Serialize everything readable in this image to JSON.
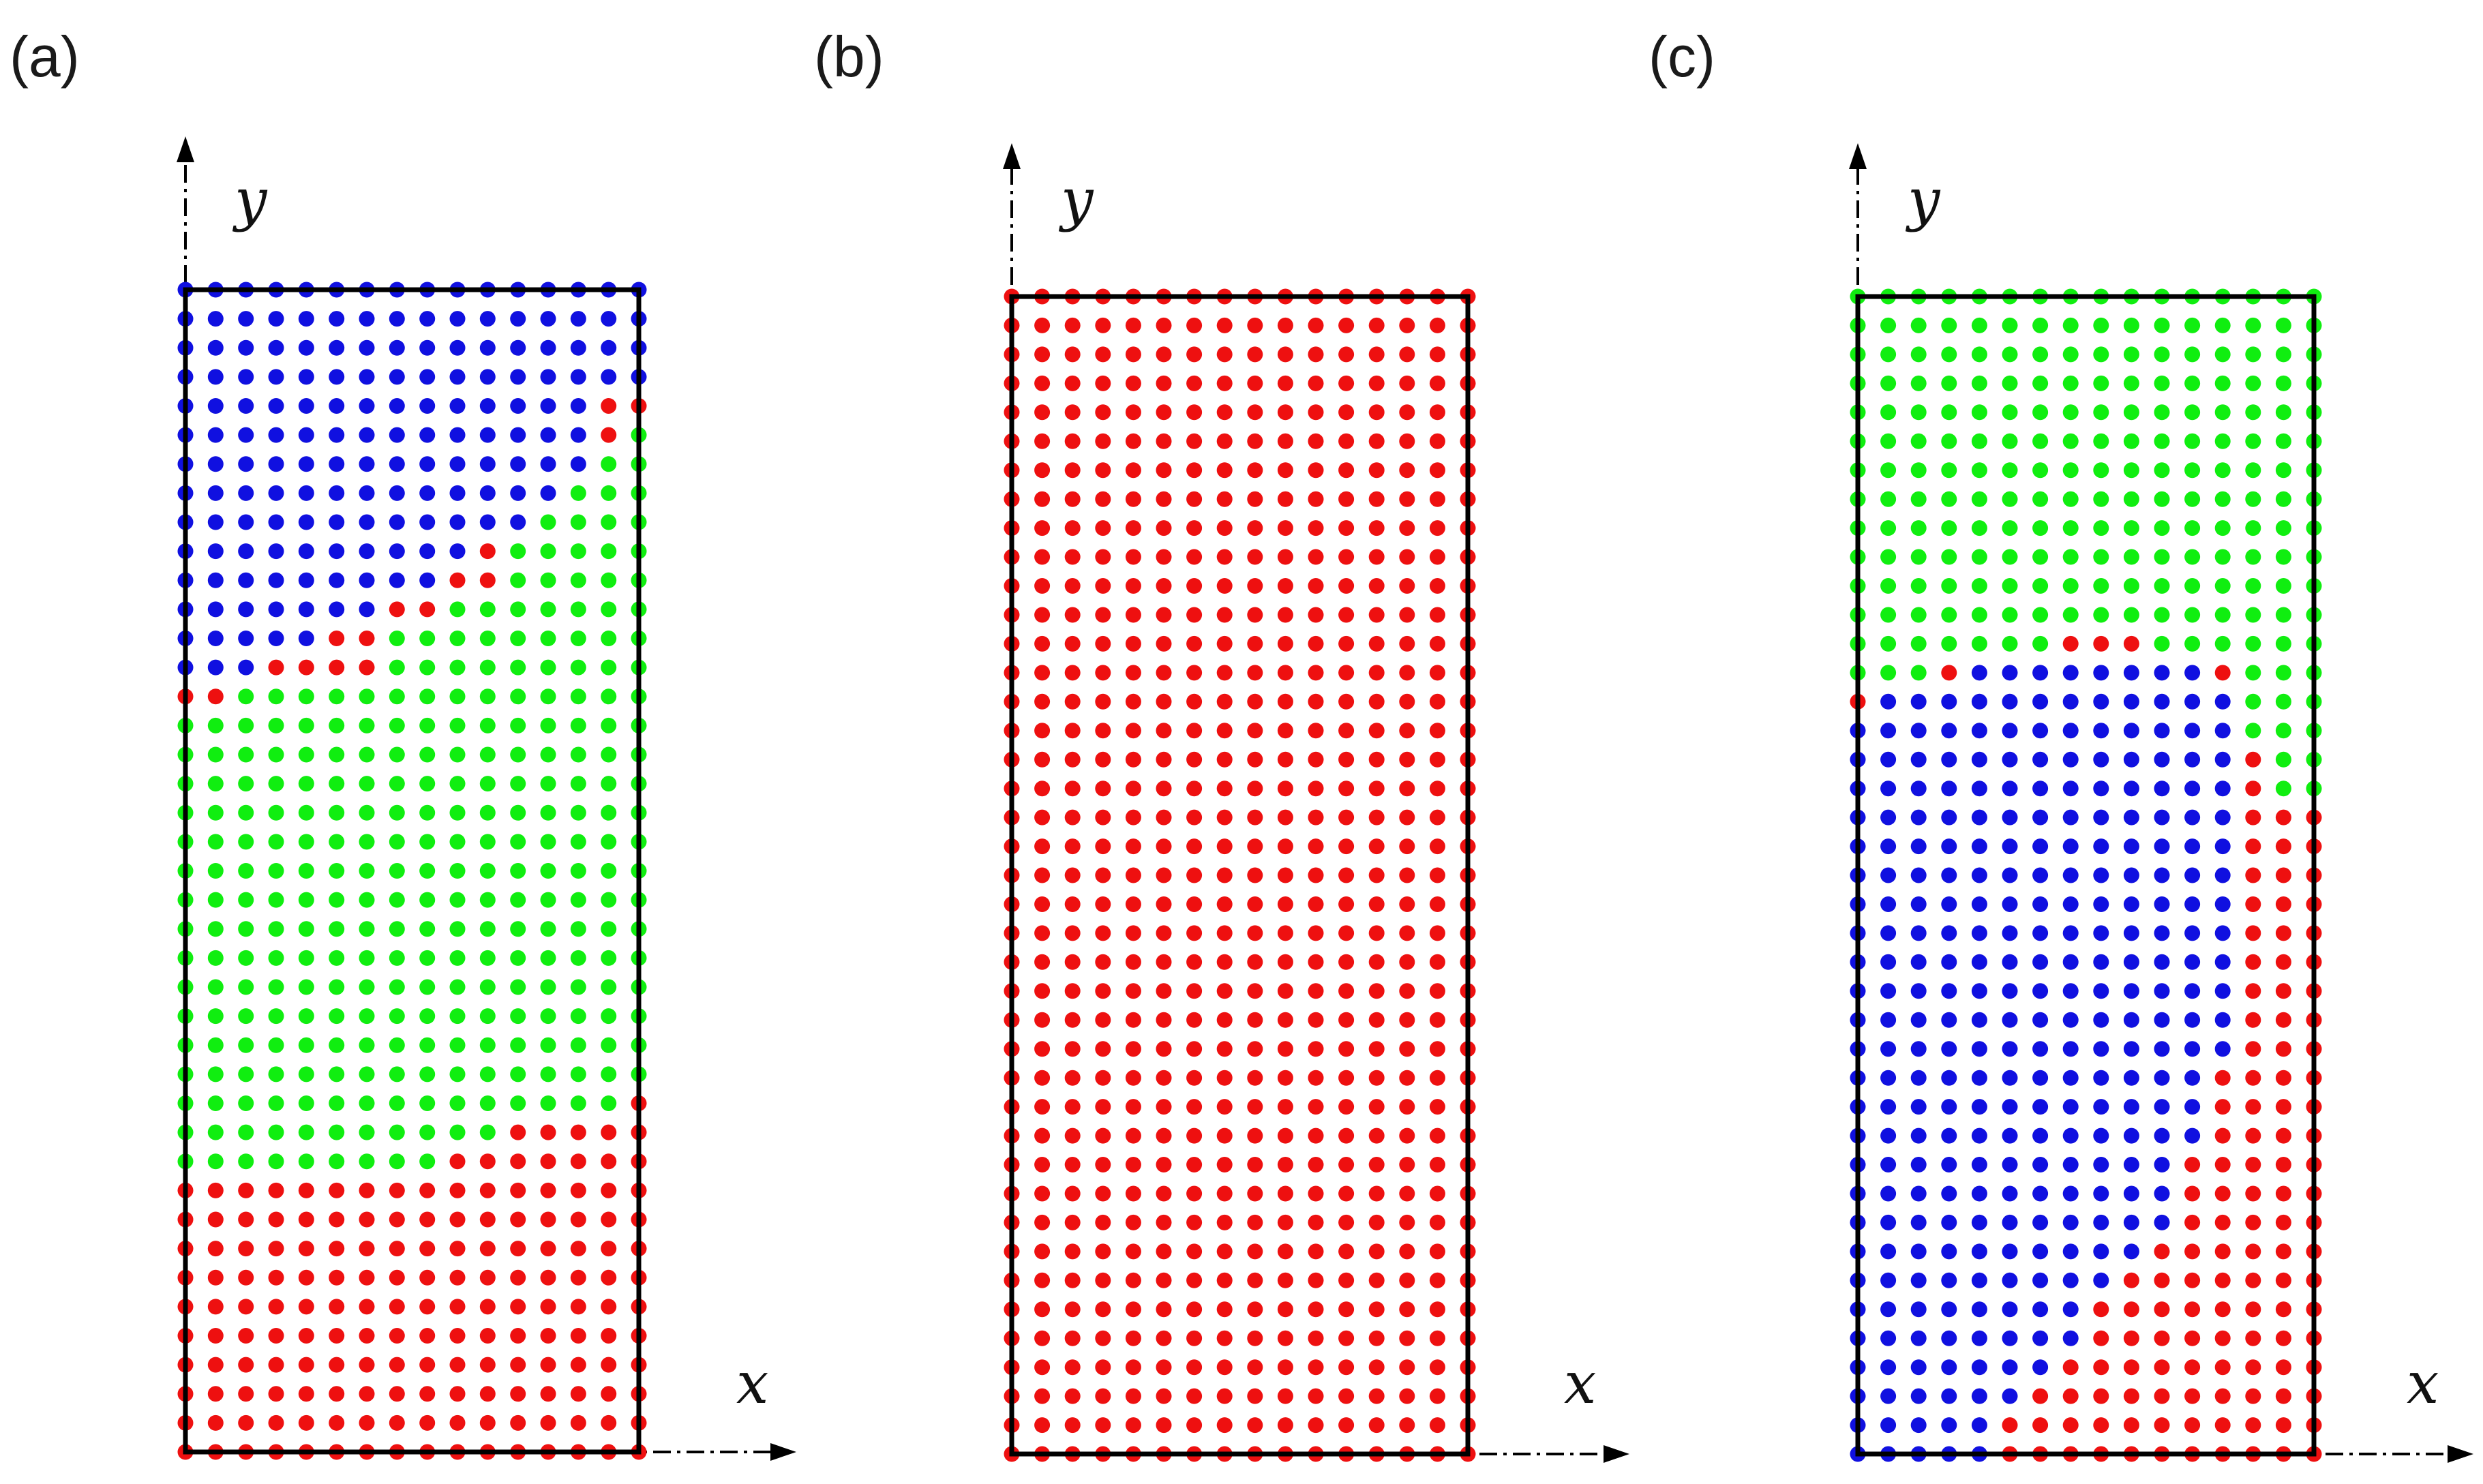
{
  "panels": [
    {
      "label": "(a)",
      "x_label": "x",
      "y_label": "y",
      "grid": {
        "columns": 16,
        "rows": 41
      },
      "colors": {
        "B": "#1010e0",
        "G": "#10ee10",
        "R": "#ee1010"
      },
      "row_codes": [
        "BBBBBBBBBBBBBBBB",
        "BBBBBBBBBBBBBBBB",
        "BBBBBBBBBBBBBBBB",
        "BBBBBBBBBBBBBBBB",
        "BBBBBBBBBBBBBBRR",
        "BBBBBBBBBBBBBBRG",
        "BBBBBBBBBBBBBBGG",
        "BBBBBBBBBBBBBGGG",
        "BBBBBBBBBBBBGGGG",
        "BBBBBBBBBBRGGGGG",
        "BBBBBBBBBRRGGGGG",
        "BBBBBBBRRGGGGGGG",
        "BBBBBRRGGGGGGGGG",
        "BBBRRRRGGGGGGGGG",
        "RRGGGGGGGGGGGGGG",
        "GGGGGGGGGGGGGGGG",
        "GGGGGGGGGGGGGGGG",
        "GGGGGGGGGGGGGGGG",
        "GGGGGGGGGGGGGGGG",
        "GGGGGGGGGGGGGGGG",
        "GGGGGGGGGGGGGGGG",
        "GGGGGGGGGGGGGGGG",
        "GGGGGGGGGGGGGGGG",
        "GGGGGGGGGGGGGGGG",
        "GGGGGGGGGGGGGGGG",
        "GGGGGGGGGGGGGGGG",
        "GGGGGGGGGGGGGGGG",
        "GGGGGGGGGGGGGGGG",
        "GGGGGGGGGGGGGGGR",
        "GGGGGGGGGGGRRRRR",
        "GGGGGGGGGRRRRRRR",
        "RRRRRRRRRRRRRRRR",
        "RRRRRRRRRRRRRRRR",
        "RRRRRRRRRRRRRRRR",
        "RRRRRRRRRRRRRRRR",
        "RRRRRRRRRRRRRRRR",
        "RRRRRRRRRRRRRRRR",
        "RRRRRRRRRRRRRRRR",
        "RRRRRRRRRRRRRRRR",
        "RRRRRRRRRRRRRRRR",
        "RRRRRRRRRRRRRRRR"
      ]
    },
    {
      "label": "(b)",
      "x_label": "x",
      "y_label": "y",
      "grid": {
        "columns": 16,
        "rows": 41
      },
      "colors": {
        "B": "#1010e0",
        "G": "#10ee10",
        "R": "#ee1010"
      },
      "row_codes": [
        "RRRRRRRRRRRRRRRR",
        "RRRRRRRRRRRRRRRR",
        "RRRRRRRRRRRRRRRR",
        "RRRRRRRRRRRRRRRR",
        "RRRRRRRRRRRRRRRR",
        "RRRRRRRRRRRRRRRR",
        "RRRRRRRRRRRRRRRR",
        "RRRRRRRRRRRRRRRR",
        "RRRRRRRRRRRRRRRR",
        "RRRRRRRRRRRRRRRR",
        "RRRRRRRRRRRRRRRR",
        "RRRRRRRRRRRRRRRR",
        "RRRRRRRRRRRRRRRR",
        "RRRRRRRRRRRRRRRR",
        "RRRRRRRRRRRRRRRR",
        "RRRRRRRRRRRRRRRR",
        "RRRRRRRRRRRRRRRR",
        "RRRRRRRRRRRRRRRR",
        "RRRRRRRRRRRRRRRR",
        "RRRRRRRRRRRRRRRR",
        "RRRRRRRRRRRRRRRR",
        "RRRRRRRRRRRRRRRR",
        "RRRRRRRRRRRRRRRR",
        "RRRRRRRRRRRRRRRR",
        "RRRRRRRRRRRRRRRR",
        "RRRRRRRRRRRRRRRR",
        "RRRRRRRRRRRRRRRR",
        "RRRRRRRRRRRRRRRR",
        "RRRRRRRRRRRRRRRR",
        "RRRRRRRRRRRRRRRR",
        "RRRRRRRRRRRRRRRR",
        "RRRRRRRRRRRRRRRR",
        "RRRRRRRRRRRRRRRR",
        "RRRRRRRRRRRRRRRR",
        "RRRRRRRRRRRRRRRR",
        "RRRRRRRRRRRRRRRR",
        "RRRRRRRRRRRRRRRR",
        "RRRRRRRRRRRRRRRR",
        "RRRRRRRRRRRRRRRR",
        "RRRRRRRRRRRRRRRR",
        "RRRRRRRRRRRRRRRR"
      ]
    },
    {
      "label": "(c)",
      "x_label": "x",
      "y_label": "y",
      "grid": {
        "columns": 16,
        "rows": 41
      },
      "colors": {
        "B": "#1010e0",
        "G": "#10ee10",
        "R": "#ee1010"
      },
      "row_codes": [
        "GGGGGGGGGGGGGGGG",
        "GGGGGGGGGGGGGGGG",
        "GGGGGGGGGGGGGGGG",
        "GGGGGGGGGGGGGGGG",
        "GGGGGGGGGGGGGGGG",
        "GGGGGGGGGGGGGGGG",
        "GGGGGGGGGGGGGGGG",
        "GGGGGGGGGGGGGGGG",
        "GGGGGGGGGGGGGGGG",
        "GGGGGGGGGGGGGGGG",
        "GGGGGGGGGGGGGGGG",
        "GGGGGGGGGGGGGGGG",
        "GGGGGGGRRRGGGGGG",
        "GGGRBBBBBBBBRGGG",
        "RBBBBBBBBBBBBGGG",
        "BBBBBBBBBBBBBGGG",
        "BBBBBBBBBBBBBRGG",
        "BBBBBBBBBBBBBRGG",
        "BBBBBBBBBBBBBRRR",
        "BBBBBBBBBBBBBRRR",
        "BBBBBBBBBBBBBRRR",
        "BBBBBBBBBBBBBRRR",
        "BBBBBBBBBBBBBRRR",
        "BBBBBBBBBBBBBRRR",
        "BBBBBBBBBBBBBRRR",
        "BBBBBBBBBBBBBRRR",
        "BBBBBBBBBBBBBRRR",
        "BBBBBBBBBBBBRRRR",
        "BBBBBBBBBBBBRRRR",
        "BBBBBBBBBBBBRRRR",
        "BBBBBBBBBBBRRRRR",
        "BBBBBBBBBBBRRRRR",
        "BBBBBBBBBBBRRRRR",
        "BBBBBBBBBBRRRRRR",
        "BBBBBBBBBRRRRRRR",
        "BBBBBBBBRRRRRRRR",
        "BBBBBBBBRRRRRRRR",
        "BBBBBBBRRRRRRRRR",
        "BBBBBBRRRRRRRRRR",
        "BBBBBRRRRRRRRRRR",
        "BBBBBRRRRRRRRRRR"
      ]
    }
  ]
}
